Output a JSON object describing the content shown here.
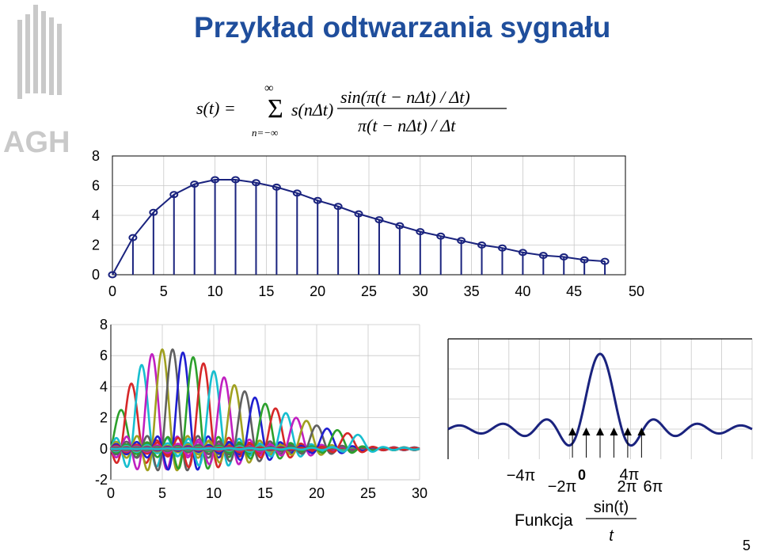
{
  "title": "Przykład odtwarzania sygnału",
  "formula": {
    "lhs": "s(t) =",
    "sum_upper": "∞",
    "sum_lower": "n=−∞",
    "term": "s(nΔt)",
    "numerator": "sin(π(t − nΔt) / Δt)",
    "denominator": "π(t − nΔt) / Δt"
  },
  "page_number": "5",
  "logo_text": "AGH",
  "colors": {
    "title": "#1f4e9c",
    "signal": "#1a237e",
    "logo": "#c9c9c9"
  },
  "chart_data": [
    {
      "type": "stem",
      "x": [
        0,
        2,
        4,
        6,
        8,
        10,
        12,
        14,
        16,
        18,
        20,
        22,
        24,
        26,
        28,
        30,
        32,
        34,
        36,
        38,
        40,
        42,
        44,
        46,
        48
      ],
      "values": [
        0,
        2.5,
        4.2,
        5.4,
        6.1,
        6.4,
        6.4,
        6.2,
        5.9,
        5.5,
        5.0,
        4.6,
        4.1,
        3.7,
        3.3,
        2.9,
        2.6,
        2.3,
        2.0,
        1.8,
        1.5,
        1.3,
        1.2,
        1.0,
        0.9
      ],
      "x_ticks": [
        "0",
        "5",
        "10",
        "15",
        "20",
        "25",
        "30",
        "35",
        "40",
        "45",
        "50"
      ],
      "y_ticks": [
        "0",
        "2",
        "4",
        "6",
        "8"
      ],
      "xlim": [
        0,
        50
      ],
      "ylim": [
        0,
        8
      ],
      "grid": true
    },
    {
      "type": "line",
      "description_series": "shifted sinc pulses, one per sample",
      "x": [
        0,
        1,
        2,
        3,
        4,
        5,
        6,
        7,
        8,
        9,
        10,
        11,
        12,
        13,
        14,
        15,
        16,
        17,
        18,
        19,
        20,
        21,
        22,
        23,
        24
      ],
      "values": [
        0,
        2.5,
        4.2,
        5.4,
        6.1,
        6.4,
        6.4,
        6.2,
        5.9,
        5.5,
        5.0,
        4.6,
        4.1,
        3.7,
        3.3,
        2.9,
        2.6,
        2.3,
        2.0,
        1.8,
        1.5,
        1.3,
        1.2,
        1.0,
        0.9
      ],
      "x_ticks": [
        "0",
        "5",
        "10",
        "15",
        "20",
        "25",
        "30"
      ],
      "y_ticks": [
        "-2",
        "0",
        "2",
        "4",
        "6",
        "8"
      ],
      "xlim": [
        0,
        30
      ],
      "ylim": [
        -2,
        8
      ],
      "grid": true,
      "palette": [
        "#1f1fd0",
        "#2ca02c",
        "#d62728",
        "#17becf",
        "#c020c0",
        "#a0a020",
        "#606060"
      ]
    },
    {
      "type": "line",
      "function": "sin(t)/t",
      "xlim": [
        -22,
        22
      ],
      "ylim": [
        -0.4,
        1.2
      ],
      "arrow_x": [
        -4,
        -2,
        0,
        2,
        4,
        6
      ],
      "label_prefix": "Funkcja",
      "label_numerator": "sin(t)",
      "label_denominator": "t",
      "x_labels": [
        {
          "text": "−4π",
          "row": "upper"
        },
        {
          "text": "−2π",
          "row": "lower"
        },
        {
          "text": "0",
          "row": "upper"
        },
        {
          "text": "2π",
          "row": "lower"
        },
        {
          "text": "4π",
          "row": "upper"
        },
        {
          "text": "6π",
          "row": "lower"
        }
      ],
      "grid": true
    }
  ]
}
